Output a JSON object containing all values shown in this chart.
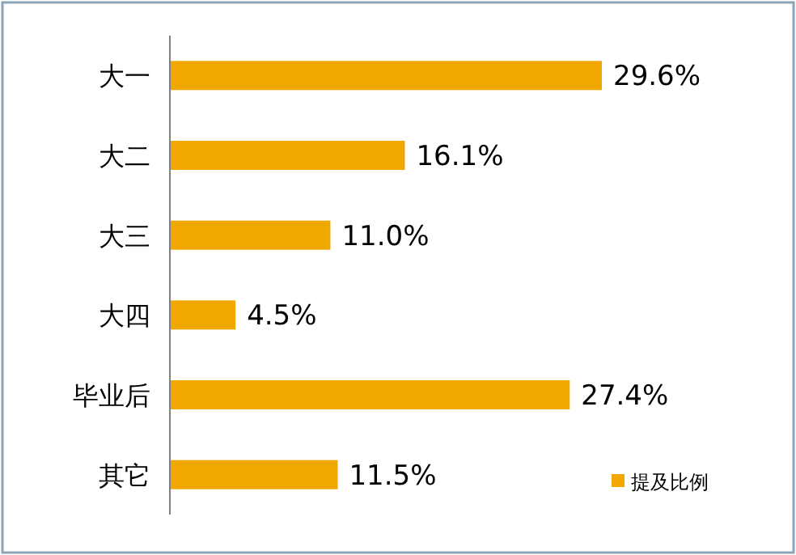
{
  "chart_data": {
    "type": "bar",
    "orientation": "horizontal",
    "categories": [
      "大一",
      "大二",
      "大三",
      "大四",
      "毕业后",
      "其它"
    ],
    "series": [
      {
        "name": "提及比例",
        "color": "#f0a800",
        "values": [
          29.6,
          16.1,
          11.0,
          4.5,
          27.4,
          11.5
        ],
        "value_labels": [
          "29.6%",
          "16.1%",
          "11.0%",
          "4.5%",
          "27.4%",
          "11.5%"
        ]
      }
    ],
    "legend": "bottom right"
  }
}
